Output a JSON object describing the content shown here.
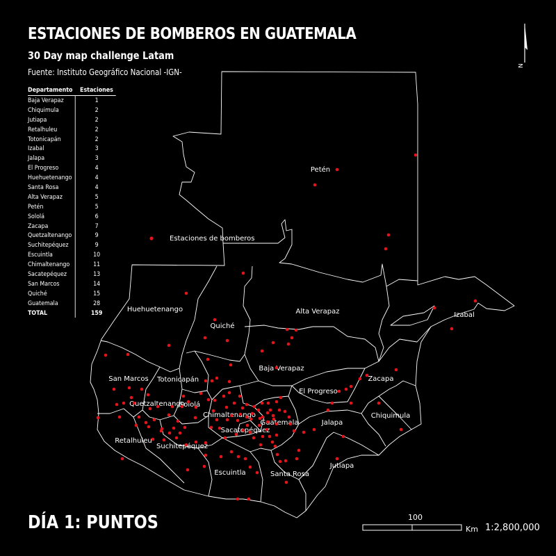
{
  "title": "ESTACIONES DE BOMBEROS EN GUATEMALA",
  "subtitle": "30 Day map challenge Latam",
  "source": "Fuente: Instituto Geográfico Nacional -IGN-",
  "footer_title": "DÍA 1: PUNTOS",
  "legend_label": "Estaciones de bomberos",
  "point_color": "#e4141b",
  "boundary_color": "#ffffff",
  "north_letter": "N",
  "scale": {
    "distance": "100",
    "unit": "Km",
    "ratio": "1:2,800,000"
  },
  "table": {
    "headers": [
      "Departamento",
      "Estaciones"
    ],
    "rows": [
      [
        "Baja Verapaz",
        "1"
      ],
      [
        "Chiquimula",
        "2"
      ],
      [
        "Jutiapa",
        "2"
      ],
      [
        "Retalhuleu",
        "2"
      ],
      [
        "Totonicapán",
        "2"
      ],
      [
        "Izabal",
        "3"
      ],
      [
        "Jalapa",
        "3"
      ],
      [
        "El Progreso",
        "4"
      ],
      [
        "Huehuetenango",
        "4"
      ],
      [
        "Santa Rosa",
        "4"
      ],
      [
        "Alta Verapaz",
        "5"
      ],
      [
        "Petén",
        "5"
      ],
      [
        "Sololá",
        "6"
      ],
      [
        "Zacapa",
        "7"
      ],
      [
        "Quetzaltenango",
        "9"
      ],
      [
        "Suchitepéquez",
        "9"
      ],
      [
        "Escuintla",
        "10"
      ],
      [
        "Chimaltenango",
        "11"
      ],
      [
        "Sacatepéquez",
        "13"
      ],
      [
        "San Marcos",
        "14"
      ],
      [
        "Quiché",
        "15"
      ],
      [
        "Guatemala",
        "28"
      ]
    ],
    "total": [
      "TOTAL",
      "159"
    ]
  },
  "department_labels": [
    "Petén",
    "Huehuetenango",
    "Quiché",
    "Alta Verapaz",
    "Izabal",
    "Baja Verapaz",
    "San Marcos",
    "Totonicapán",
    "El Progreso",
    "Zacapa",
    "Quetzaltenango",
    "Sololá",
    "Chimaltenango",
    "Guatemala",
    "Chiquimula",
    "Jalapa",
    "Sacatepéquez",
    "Retalhuleu",
    "Suchitepéquez",
    "Jutiapa",
    "Escuintla",
    "Santa Rosa"
  ]
}
